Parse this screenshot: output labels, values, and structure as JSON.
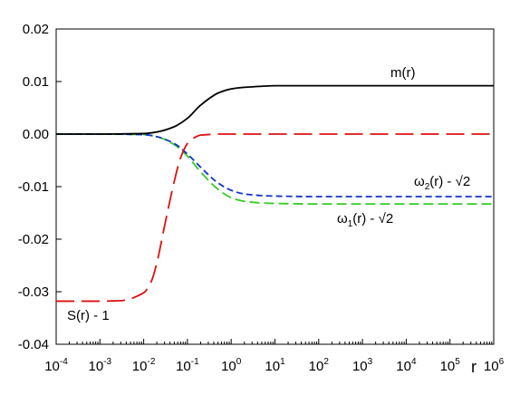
{
  "chart_data": {
    "type": "line",
    "title": "",
    "xlabel": "r",
    "ylabel": "",
    "xscale": "log",
    "xlim": [
      0.0001,
      1000000
    ],
    "ylim": [
      -0.04,
      0.02
    ],
    "grid": false,
    "legend": "none",
    "x_ticks": [
      {
        "base": "10",
        "exp": "-4"
      },
      {
        "base": "10",
        "exp": "-3"
      },
      {
        "base": "10",
        "exp": "-2"
      },
      {
        "base": "10",
        "exp": "-1"
      },
      {
        "base": "10",
        "exp": "0"
      },
      {
        "base": "10",
        "exp": "1"
      },
      {
        "base": "10",
        "exp": "2"
      },
      {
        "base": "10",
        "exp": "3"
      },
      {
        "base": "10",
        "exp": "4"
      },
      {
        "base": "10",
        "exp": "5"
      },
      {
        "base": "10",
        "exp": "6"
      }
    ],
    "y_ticks": [
      "0.02",
      "0.01",
      "0.00",
      "-0.01",
      "-0.02",
      "-0.03",
      "-0.04"
    ],
    "y_tick_values": [
      0.02,
      0.01,
      0.0,
      -0.01,
      -0.02,
      -0.03,
      -0.04
    ],
    "series": [
      {
        "name": "m(r)",
        "color": "#000000",
        "style": "solid",
        "x": [
          0.0001,
          0.001,
          0.01,
          0.02,
          0.05,
          0.1,
          0.2,
          0.5,
          1,
          2,
          5,
          10,
          100,
          1000,
          10000,
          100000,
          1000000
        ],
        "y": [
          0.0,
          0.0,
          0.0001,
          0.0004,
          0.0014,
          0.003,
          0.0055,
          0.0078,
          0.0086,
          0.0089,
          0.0091,
          0.0092,
          0.0092,
          0.0092,
          0.0092,
          0.0092,
          0.0092
        ]
      },
      {
        "name": "S(r) - 1",
        "color": "#dd1111",
        "style": "long-dash",
        "x": [
          0.0001,
          0.001,
          0.003,
          0.01,
          0.015,
          0.02,
          0.03,
          0.05,
          0.07,
          0.1,
          0.15,
          0.2,
          0.3,
          0.5,
          1,
          10,
          100,
          1000,
          10000,
          100000,
          1000000
        ],
        "y": [
          -0.0318,
          -0.0318,
          -0.0317,
          -0.0302,
          -0.028,
          -0.0245,
          -0.0175,
          -0.009,
          -0.0045,
          -0.0018,
          -0.0006,
          -0.0002,
          -0.0001,
          0.0,
          0.0,
          0.0,
          0.0,
          0.0,
          0.0,
          0.0,
          0.0
        ]
      },
      {
        "name": "ω₂(r) - √2",
        "label_main": "ω",
        "label_sub": "2",
        "label_rest": "(r) - √2",
        "color": "#1133cc",
        "style": "short-dash",
        "x": [
          0.0001,
          0.001,
          0.01,
          0.02,
          0.05,
          0.1,
          0.2,
          0.5,
          1,
          2,
          5,
          10,
          100,
          1000,
          10000,
          100000,
          1000000
        ],
        "y": [
          0.0,
          0.0,
          -0.0001,
          -0.0005,
          -0.0018,
          -0.0038,
          -0.0063,
          -0.0093,
          -0.0107,
          -0.0114,
          -0.0117,
          -0.0118,
          -0.0119,
          -0.0119,
          -0.0119,
          -0.0119,
          -0.0119
        ]
      },
      {
        "name": "ω₁(r) - √2",
        "label_main": "ω",
        "label_sub": "1",
        "label_rest": "(r) - √2",
        "color": "#33cc22",
        "style": "dash",
        "x": [
          0.0001,
          0.001,
          0.01,
          0.02,
          0.05,
          0.1,
          0.2,
          0.5,
          1,
          2,
          5,
          10,
          100,
          1000,
          10000,
          100000,
          1000000
        ],
        "y": [
          0.0,
          0.0,
          -0.0001,
          -0.0005,
          -0.002,
          -0.0042,
          -0.0072,
          -0.0105,
          -0.0121,
          -0.0128,
          -0.0131,
          -0.0132,
          -0.0133,
          -0.0133,
          -0.0133,
          -0.0133,
          -0.0133
        ]
      }
    ]
  }
}
